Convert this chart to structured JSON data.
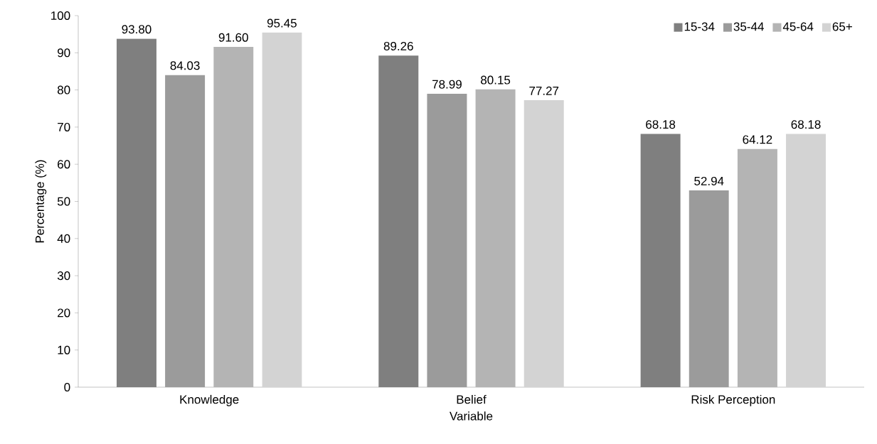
{
  "chart_data": {
    "type": "bar",
    "xlabel": "Variable",
    "ylabel": "Percentage (%)",
    "categories": [
      "Knowledge",
      "Belief",
      "Risk Perception"
    ],
    "series": [
      {
        "name": "15-34",
        "color": "#7f7f7f",
        "values": [
          93.8,
          89.26,
          68.18
        ],
        "value_labels": [
          "93.80",
          "89.26",
          "68.18"
        ]
      },
      {
        "name": "35-44",
        "color": "#9b9b9b",
        "values": [
          84.03,
          78.99,
          52.94
        ],
        "value_labels": [
          "84.03",
          "78.99",
          "52.94"
        ]
      },
      {
        "name": "45-64",
        "color": "#b4b4b4",
        "values": [
          91.6,
          80.15,
          64.12
        ],
        "value_labels": [
          "91.60",
          "80.15",
          "64.12"
        ]
      },
      {
        "name": "65+",
        "color": "#d3d3d3",
        "values": [
          95.45,
          77.27,
          68.18
        ],
        "value_labels": [
          "95.45",
          "77.27",
          "68.18"
        ]
      }
    ],
    "ylim": [
      0,
      100
    ],
    "yticks": [
      0,
      10,
      20,
      30,
      40,
      50,
      60,
      70,
      80,
      90,
      100
    ],
    "grid": false,
    "legend": "top right"
  }
}
